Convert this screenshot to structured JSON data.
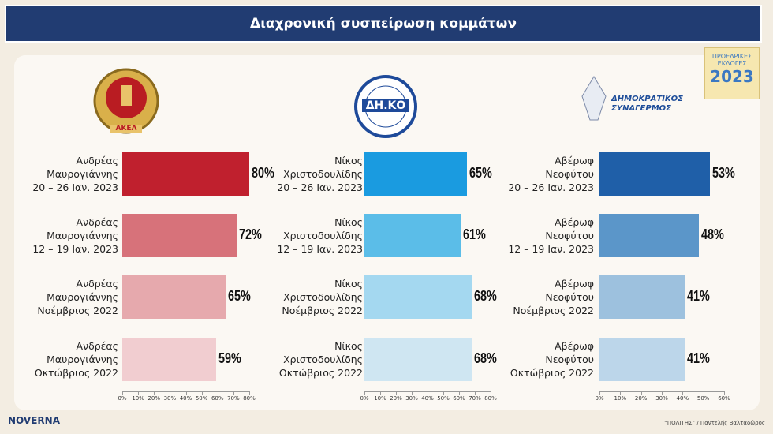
{
  "header": {
    "title": "Διαχρονική συσπείρωση κομμάτων"
  },
  "badge": {
    "lines": [
      "ΠΡΟΕΔΡΙΚΕΣ",
      "ΕΚΛΟΓΕΣ"
    ],
    "year": "2023"
  },
  "logos": [
    "ΑΚΕΛ",
    "ΔΗ.ΚΟ",
    "ΔΗΜΟΚΡΑΤΙΚΟΣ ΣΥΝΑΓΕΡΜΟΣ"
  ],
  "footer": {
    "brand": "NOVERNA",
    "source": "“ΠΟΛΙΤΗΣ” / Παντελής Βαλταδώρος"
  },
  "chart_data": [
    {
      "type": "hbar",
      "categories": [
        "Ανδρέας\nΜαυρογιάννης\n20 – 26 Ιαν. 2023",
        "Ανδρέας\nΜαυρογιάννης\n12 – 19 Ιαν. 2023",
        "Ανδρέας\nΜαυρογιάννης\nΝοέμβριος 2022",
        "Ανδρέας\nΜαυρογιάννης\nΟκτώβριος 2022"
      ],
      "values": [
        80,
        72,
        65,
        59
      ],
      "value_labels": [
        "80%",
        "72%",
        "65%",
        "59%"
      ],
      "colors": [
        "#c0202e",
        "#d7727a",
        "#e6a9ad",
        "#f1cdd0"
      ],
      "xlim": [
        0,
        80
      ],
      "xticks": [
        {
          "value": 0,
          "label": "0%"
        },
        {
          "value": 10,
          "label": "10%"
        },
        {
          "value": 20,
          "label": "20%"
        },
        {
          "value": 30,
          "label": "30%"
        },
        {
          "value": 40,
          "label": "40%"
        },
        {
          "value": 50,
          "label": "50%"
        },
        {
          "value": 60,
          "label": "60%"
        },
        {
          "value": 70,
          "label": "70%"
        },
        {
          "value": 80,
          "label": "80%"
        }
      ]
    },
    {
      "type": "hbar",
      "categories": [
        "Νίκος\nΧριστοδουλίδης\n20 – 26 Ιαν. 2023",
        "Νίκος\nΧριστοδουλίδης\n12 – 19 Ιαν. 2023",
        "Νίκος\nΧριστοδουλίδης\nΝοέμβριος 2022",
        "Νίκος\nΧριστοδουλίδης\nΟκτώβριος 2022"
      ],
      "values": [
        65,
        61,
        68,
        68
      ],
      "value_labels": [
        "65%",
        "61%",
        "68%",
        "68%"
      ],
      "colors": [
        "#1a9be0",
        "#5bbde8",
        "#a4d8f0",
        "#cfe6f2"
      ],
      "xlim": [
        0,
        80
      ],
      "xticks": [
        {
          "value": 0,
          "label": "0%"
        },
        {
          "value": 10,
          "label": "10%"
        },
        {
          "value": 20,
          "label": "20%"
        },
        {
          "value": 30,
          "label": "30%"
        },
        {
          "value": 40,
          "label": "40%"
        },
        {
          "value": 50,
          "label": "50%"
        },
        {
          "value": 60,
          "label": "60%"
        },
        {
          "value": 70,
          "label": "70%"
        },
        {
          "value": 80,
          "label": "80%"
        }
      ]
    },
    {
      "type": "hbar",
      "categories": [
        "Αβέρωφ\nΝεοφύτου\n20 – 26 Ιαν. 2023",
        "Αβέρωφ\nΝεοφύτου\n12 – 19 Ιαν. 2023",
        "Αβέρωφ\nΝεοφύτου\nΝοέμβριος 2022",
        "Αβέρωφ\nΝεοφύτου\nΟκτώβριος 2022"
      ],
      "values": [
        53,
        48,
        41,
        41
      ],
      "value_labels": [
        "53%",
        "48%",
        "41%",
        "41%"
      ],
      "colors": [
        "#1f5fa8",
        "#5b96c9",
        "#9dc1de",
        "#bcd6ea"
      ],
      "xlim": [
        0,
        60
      ],
      "xticks": [
        {
          "value": 0,
          "label": "0%"
        },
        {
          "value": 10,
          "label": "10%"
        },
        {
          "value": 20,
          "label": "20%"
        },
        {
          "value": 30,
          "label": "30%"
        },
        {
          "value": 40,
          "label": "40%"
        },
        {
          "value": 50,
          "label": "50%"
        },
        {
          "value": 60,
          "label": "60%"
        }
      ]
    }
  ]
}
